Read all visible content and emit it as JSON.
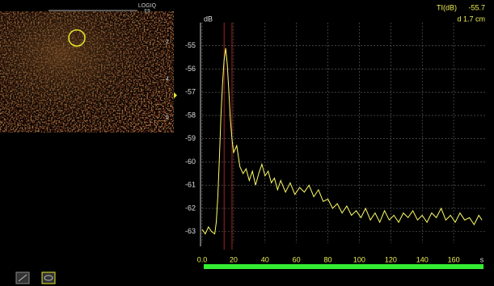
{
  "chart_data": {
    "type": "line",
    "readout_label": "TI(dB)",
    "readout_value": "-55.7",
    "readout_depth": "d 1.7 cm",
    "ylabel": "dB",
    "xlabel": "s",
    "x": [
      0,
      2,
      4,
      6,
      8,
      9,
      10,
      11,
      12,
      13,
      14,
      15,
      16,
      17,
      18,
      19,
      20,
      22,
      24,
      26,
      28,
      30,
      32,
      34,
      36,
      38,
      40,
      42,
      44,
      46,
      48,
      50,
      53,
      56,
      59,
      62,
      65,
      68,
      71,
      74,
      77,
      80,
      83,
      86,
      89,
      92,
      95,
      98,
      101,
      104,
      107,
      110,
      113,
      116,
      119,
      122,
      125,
      128,
      131,
      134,
      137,
      140,
      143,
      146,
      149,
      152,
      155,
      158,
      161,
      164,
      167,
      170,
      173,
      176,
      178
    ],
    "series": [
      {
        "color": "#ffff66",
        "values": [
          -62.9,
          -63.1,
          -62.8,
          -63.0,
          -63.1,
          -62.6,
          -61.5,
          -59.8,
          -58.0,
          -56.6,
          -55.6,
          -55.1,
          -55.8,
          -57.0,
          -58.2,
          -59.0,
          -59.6,
          -59.3,
          -60.2,
          -60.5,
          -60.3,
          -60.8,
          -60.4,
          -61.0,
          -60.5,
          -60.1,
          -60.6,
          -60.4,
          -60.9,
          -60.7,
          -61.2,
          -60.8,
          -61.3,
          -60.9,
          -61.4,
          -61.1,
          -61.3,
          -61.0,
          -61.5,
          -61.2,
          -61.7,
          -61.6,
          -62.0,
          -61.8,
          -62.2,
          -61.9,
          -62.3,
          -62.1,
          -62.4,
          -62.0,
          -62.5,
          -62.2,
          -62.6,
          -62.1,
          -62.5,
          -62.3,
          -62.6,
          -62.2,
          -62.4,
          -62.1,
          -62.5,
          -62.3,
          -62.6,
          -62.2,
          -62.4,
          -62.0,
          -62.5,
          -62.3,
          -62.6,
          -62.2,
          -62.5,
          -62.4,
          -62.7,
          -62.3,
          -62.5
        ]
      }
    ],
    "markers": [
      14,
      19
    ],
    "marker_color": "#aa2222",
    "xlim": [
      0,
      180
    ],
    "ylim": [
      -63.5,
      -54
    ],
    "xticks": [
      {
        "value": 0,
        "label": "0.0"
      },
      20,
      40,
      60,
      80,
      100,
      120,
      140,
      160
    ],
    "yticks": [
      -55,
      -56,
      -57,
      -58,
      -59,
      -60,
      -61,
      -62,
      -63
    ],
    "grid": true
  },
  "image": {
    "brand": "LOGIQ",
    "model": "E9",
    "depth_labels": [
      "2",
      "4",
      "6"
    ]
  }
}
